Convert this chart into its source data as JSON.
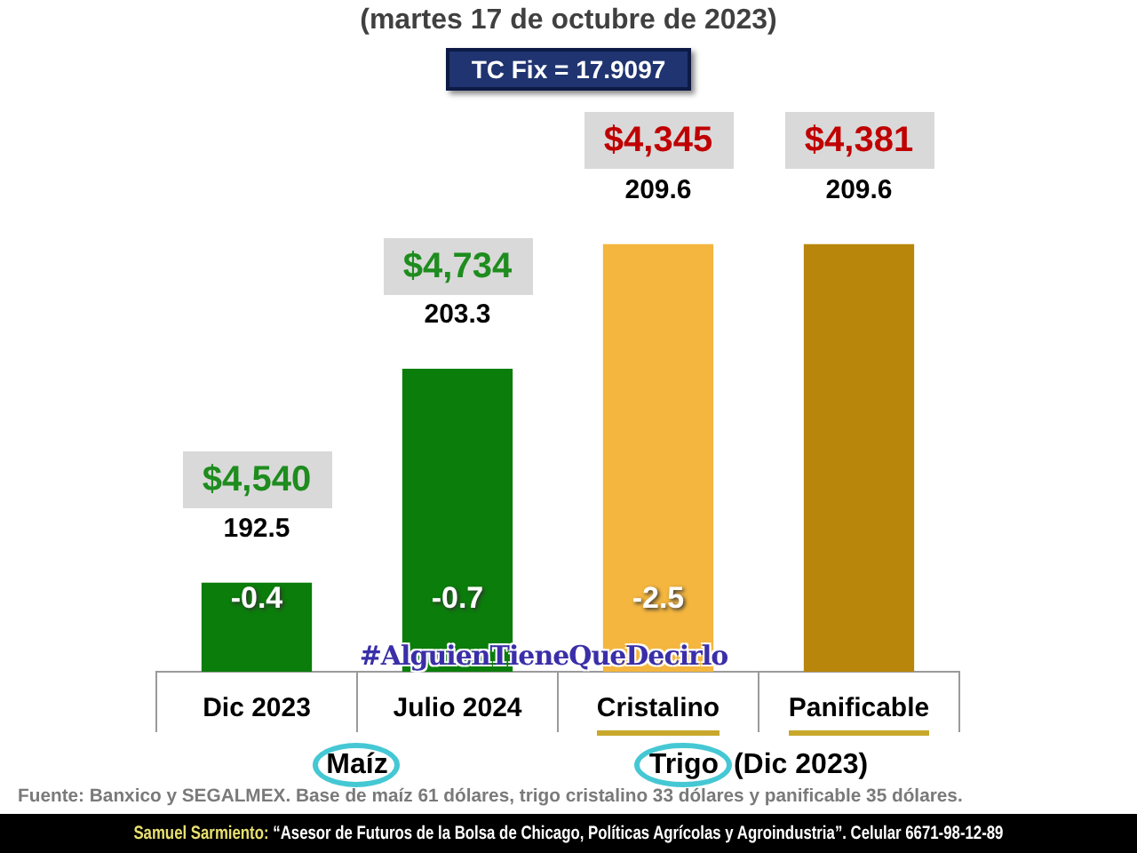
{
  "chart_data": {
    "type": "bar",
    "title": "(martes 17 de octubre de 2023)",
    "subtitle": "TC Fix = 17.9097",
    "categories": [
      "Dic 2023",
      "Julio 2024",
      "Cristalino",
      "Panificable"
    ],
    "values": [
      192.5,
      203.3,
      209.6,
      209.6
    ],
    "colors": [
      "#0b7d0b",
      "#0b7d0b",
      "#f4b63f",
      "#b8860b"
    ],
    "data_labels": true,
    "grid": false,
    "legend": false,
    "tick_labels": "x",
    "annotations": [
      {
        "text": "$4,540",
        "x": "Dic 2023",
        "y": 192.5
      },
      {
        "text": "$4,734",
        "x": "Julio 2024",
        "y": 203.3
      },
      {
        "text": "$4,345",
        "x": "Cristalino",
        "y": 209.6
      },
      {
        "text": "$4,381",
        "x": "Panificable",
        "y": 209.6
      },
      "-0.4",
      "-0.7",
      "-2.5",
      "Maíz",
      "Trigo (Dic 2023)",
      "#AlguienTieneQueDecirlo",
      "Fuente: Banxico y SEGALMEX. Base de maíz 61 dólares, trigo cristalino 33 dólares y panificable 35 dólares.",
      "Samuel Sarmiento: “Asesor de Futuros de la Bolsa de Chicago, Políticas Agrícolas y Agroindustria”. Celular 6671-98-12-89"
    ]
  }
}
